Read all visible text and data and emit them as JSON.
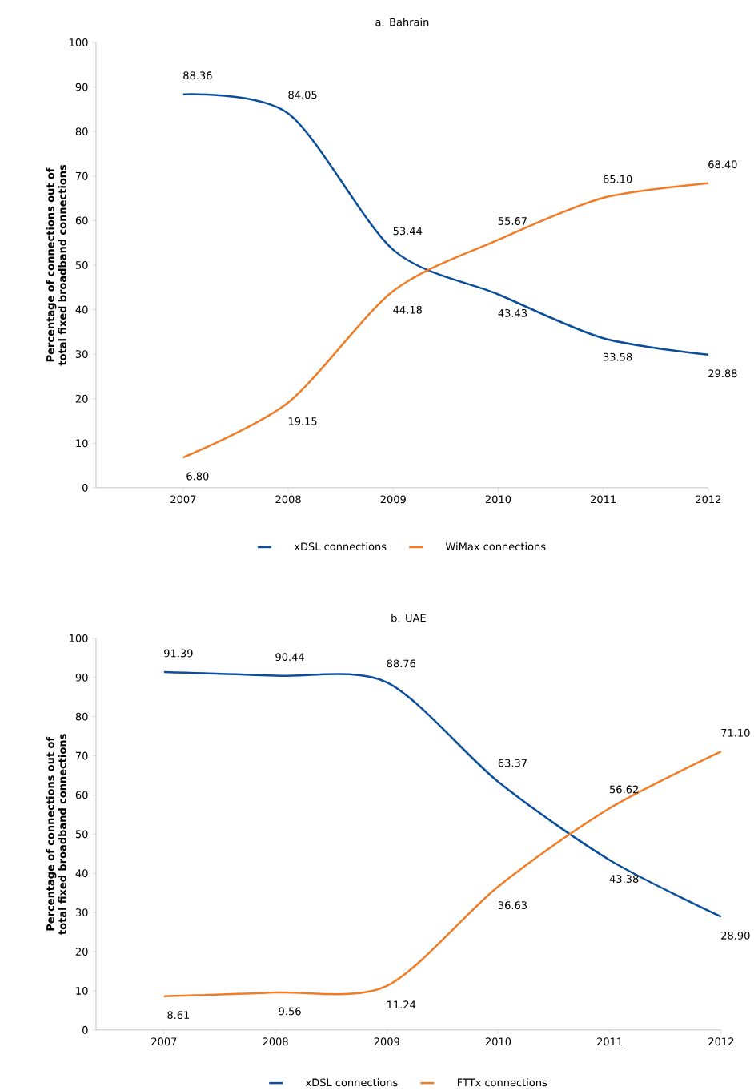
{
  "chart_data": [
    {
      "type": "line",
      "title": "a. Bahrain",
      "ylabel": "Percentage of connections out of total fixed broadband connections",
      "x": [
        2007,
        2008,
        2009,
        2010,
        2011,
        2012
      ],
      "xlim": [
        2006.17,
        2012
      ],
      "xticks": [
        2007,
        2008,
        2009,
        2010,
        2011,
        2012
      ],
      "ylim": [
        0,
        100
      ],
      "yticks": [
        0,
        10,
        20,
        30,
        40,
        50,
        60,
        70,
        80,
        90,
        100
      ],
      "legend": "bottom",
      "data_labels": true,
      "series": [
        {
          "name": "xDSL connections",
          "color": "#0b4f9c",
          "values": [
            88.36,
            84.05,
            53.44,
            43.43,
            33.58,
            29.88
          ],
          "value_labels": [
            "88.36",
            "84.05",
            "53.44",
            "43.43",
            "33.58",
            "29.88"
          ]
        },
        {
          "name": "WiMax connections",
          "color": "#f07c25",
          "values": [
            6.8,
            19.15,
            44.18,
            55.67,
            65.1,
            68.4
          ],
          "value_labels": [
            "6.80",
            "19.15",
            "44.18",
            "55.67",
            "65.10",
            "68.40"
          ]
        }
      ]
    },
    {
      "type": "line",
      "title": "b. UAE",
      "ylabel": "Percentage of connections out of total fixed broadband connections",
      "x": [
        2007,
        2008,
        2009,
        2010,
        2011,
        2012
      ],
      "xlim": [
        2006.39,
        2012
      ],
      "xticks": [
        2007,
        2008,
        2009,
        2010,
        2011,
        2012
      ],
      "ylim": [
        0,
        100
      ],
      "yticks": [
        0,
        10,
        20,
        30,
        40,
        50,
        60,
        70,
        80,
        90,
        100
      ],
      "legend": "bottom",
      "data_labels": true,
      "series": [
        {
          "name": "xDSL connections",
          "color": "#0b4f9c",
          "values": [
            91.39,
            90.44,
            88.76,
            63.37,
            43.38,
            28.9
          ],
          "value_labels": [
            "91.39",
            "90.44",
            "88.76",
            "63.37",
            "43.38",
            "28.90"
          ]
        },
        {
          "name": "FTTx connections",
          "color": "#f07c25",
          "values": [
            8.61,
            9.56,
            11.24,
            36.63,
            56.62,
            71.1
          ],
          "value_labels": [
            "8.61",
            "9.56",
            "11.24",
            "36.63",
            "56.62",
            "71.10"
          ]
        }
      ]
    }
  ]
}
